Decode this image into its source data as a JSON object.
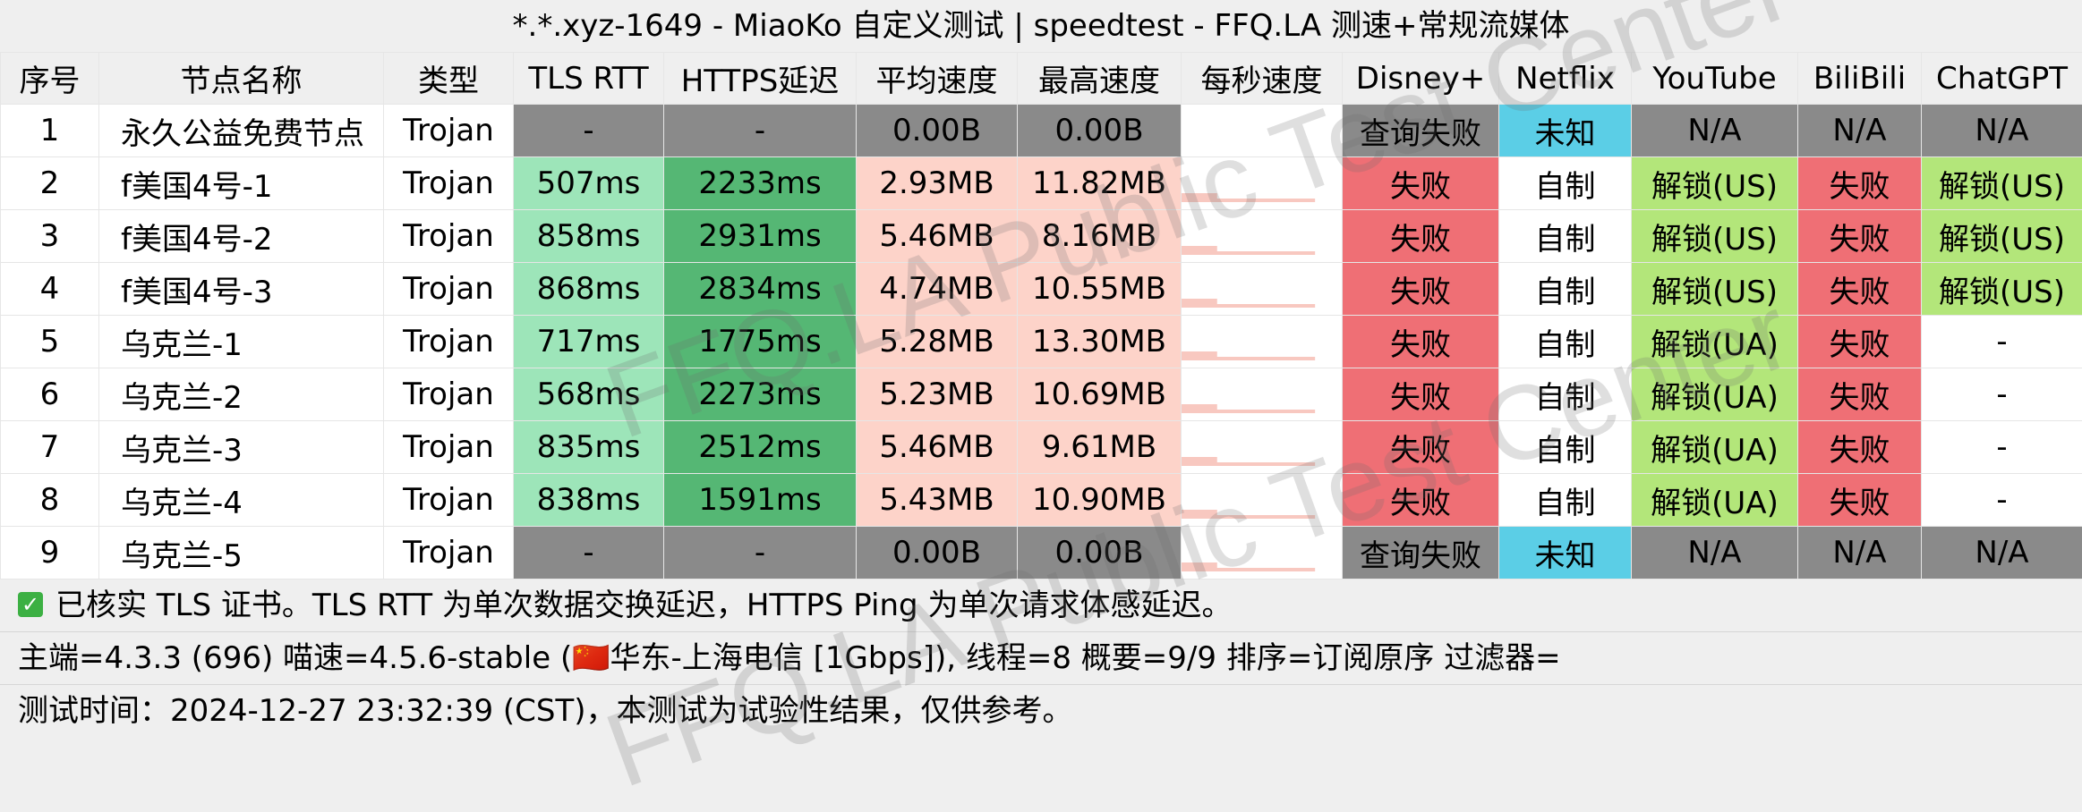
{
  "title": "*.*.xyz-1649 - MiaoKo 自定义测试 | speedtest - FFQ.LA 测速+常规流媒体",
  "columns": [
    "序号",
    "节点名称",
    "类型",
    "TLS RTT",
    "HTTPS延迟",
    "平均速度",
    "最高速度",
    "每秒速度",
    "Disney+",
    "Netflix",
    "YouTube",
    "BiliBili",
    "ChatGPT"
  ],
  "colors": {
    "grey": "#8a8a8a",
    "green1": "#9de5b9",
    "green2": "#55b774",
    "pink": "#fdd3c9",
    "red": "#ef6f75",
    "cyan": "#5bcee6",
    "lime": "#b3e67a",
    "spark": "#f8c8c0"
  },
  "rows": [
    {
      "cells": [
        "1",
        "永久公益免费节点",
        "Trojan",
        "-",
        "-",
        "0.00B",
        "0.00B",
        "",
        "查询失败",
        "未知",
        "N/A",
        "N/A",
        "N/A"
      ]
    },
    {
      "cells": [
        "2",
        "f美国4号-1",
        "Trojan",
        "507ms",
        "2233ms",
        "2.93MB",
        "11.82MB",
        "",
        "失败",
        "自制",
        "解锁(US)",
        "失败",
        "解锁(US)"
      ]
    },
    {
      "cells": [
        "3",
        "f美国4号-2",
        "Trojan",
        "858ms",
        "2931ms",
        "5.46MB",
        "8.16MB",
        "",
        "失败",
        "自制",
        "解锁(US)",
        "失败",
        "解锁(US)"
      ]
    },
    {
      "cells": [
        "4",
        "f美国4号-3",
        "Trojan",
        "868ms",
        "2834ms",
        "4.74MB",
        "10.55MB",
        "",
        "失败",
        "自制",
        "解锁(US)",
        "失败",
        "解锁(US)"
      ]
    },
    {
      "cells": [
        "5",
        "乌克兰-1",
        "Trojan",
        "717ms",
        "1775ms",
        "5.28MB",
        "13.30MB",
        "",
        "失败",
        "自制",
        "解锁(UA)",
        "失败",
        "-"
      ]
    },
    {
      "cells": [
        "6",
        "乌克兰-2",
        "Trojan",
        "568ms",
        "2273ms",
        "5.23MB",
        "10.69MB",
        "",
        "失败",
        "自制",
        "解锁(UA)",
        "失败",
        "-"
      ]
    },
    {
      "cells": [
        "7",
        "乌克兰-3",
        "Trojan",
        "835ms",
        "2512ms",
        "5.46MB",
        "9.61MB",
        "",
        "失败",
        "自制",
        "解锁(UA)",
        "失败",
        "-"
      ]
    },
    {
      "cells": [
        "8",
        "乌克兰-4",
        "Trojan",
        "838ms",
        "1591ms",
        "5.43MB",
        "10.90MB",
        "",
        "失败",
        "自制",
        "解锁(UA)",
        "失败",
        "-"
      ]
    },
    {
      "cells": [
        "9",
        "乌克兰-5",
        "Trojan",
        "-",
        "-",
        "0.00B",
        "0.00B",
        "",
        "查询失败",
        "未知",
        "N/A",
        "N/A",
        "N/A"
      ]
    }
  ],
  "footer": {
    "tls_note": "已核实 TLS 证书。TLS RTT 为单次数据交换延迟，HTTPS Ping 为单次请求体感延迟。",
    "info": "主端=4.3.3 (696) 喵速=4.5.6-stable (🇨🇳华东-上海电信 [1Gbps]), 线程=8 概要=9/9 排序=订阅原序 过滤器=",
    "time": "测试时间：2024-12-27 23:32:39 (CST)，本测试为试验性结果，仅供参考。"
  },
  "watermark": [
    "FFQ.LA Public Test Center",
    "FFQ.LA Public Test Center"
  ]
}
